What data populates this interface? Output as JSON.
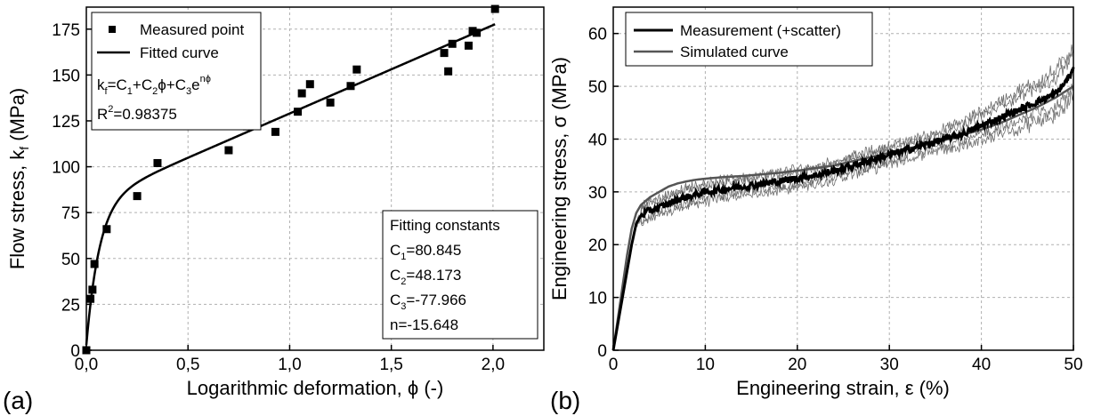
{
  "chart_data": [
    {
      "panel_label": "(a)",
      "type": "scatter",
      "xlabel": "Logarithmic deformation, ϕ (-)",
      "ylabel_main": "Flow stress, k",
      "ylabel_sub": "f",
      "ylabel_end": " (MPa)",
      "xlim": [
        0,
        2.25
      ],
      "ylim": [
        0,
        187
      ],
      "x_ticks": [
        0,
        0.5,
        1.0,
        1.5,
        2.0
      ],
      "x_tick_labels": [
        "0,0",
        "0,5",
        "1,0",
        "1,5",
        "2,0"
      ],
      "y_ticks": [
        0,
        25,
        50,
        75,
        100,
        125,
        150,
        175
      ],
      "y_tick_labels": [
        "0",
        "25",
        "50",
        "75",
        "100",
        "125",
        "150",
        "175"
      ],
      "grid": true,
      "legend_position": "top-left",
      "series": [
        {
          "name": "Measured point",
          "kind": "markers",
          "marker": "square",
          "x": [
            0.0,
            0.02,
            0.03,
            0.04,
            0.1,
            0.25,
            0.35,
            0.7,
            0.79,
            0.93,
            1.04,
            1.06,
            1.1,
            1.2,
            1.3,
            1.33,
            1.76,
            1.78,
            1.8,
            1.88,
            1.9,
            1.92,
            2.01
          ],
          "y": [
            0,
            28,
            33,
            47,
            66,
            84,
            102,
            109,
            122,
            119,
            130,
            140,
            145,
            135,
            144,
            153,
            162,
            152,
            167,
            166,
            174,
            173,
            186
          ]
        },
        {
          "name": "Fitted curve",
          "kind": "line",
          "x_start": 0.0,
          "x_end": 2.01,
          "color": "#000000"
        }
      ],
      "equation_label": "k",
      "equation_parts": {
        "k_sub": "f",
        "eq1": "=C",
        "s1": "1",
        "eq2": "+C",
        "s2": "2",
        "phi": "ϕ",
        "eq3": "+C",
        "s3": "3",
        "e": "e",
        "exp": "nϕ"
      },
      "r2_main": "R",
      "r2_sup": "2",
      "r2_value": "=0.98375",
      "fit_constants_title": "Fitting constants",
      "fit_constants": [
        {
          "name": "C",
          "sub": "1",
          "value": "=80.845"
        },
        {
          "name": "C",
          "sub": "2",
          "value": "=48.173"
        },
        {
          "name": "C",
          "sub": "3",
          "value": "=-77.966"
        },
        {
          "name": "n",
          "sub": "",
          "value": "=-15.648"
        }
      ],
      "model": {
        "C1": 80.845,
        "C2": 48.173,
        "C3": -77.966,
        "n": -15.648
      }
    },
    {
      "panel_label": "(b)",
      "type": "line",
      "xlabel": "Engineering strain, ε (%)",
      "ylabel": "Engineering stress, σ (MPa)",
      "xlim": [
        0,
        50
      ],
      "ylim": [
        0,
        65
      ],
      "x_ticks": [
        0,
        10,
        20,
        30,
        40,
        50
      ],
      "x_tick_labels": [
        "0",
        "10",
        "20",
        "30",
        "40",
        "50"
      ],
      "y_ticks": [
        0,
        10,
        20,
        30,
        40,
        50,
        60
      ],
      "y_tick_labels": [
        "0",
        "10",
        "20",
        "30",
        "40",
        "50",
        "60"
      ],
      "grid": true,
      "legend_position": "top-left",
      "series": [
        {
          "name": "Measurement (+scatter)",
          "color": "#000000",
          "x": [
            0,
            0.5,
            1,
            1.5,
            2,
            2.5,
            3,
            4,
            5,
            6,
            7,
            8,
            9,
            10,
            12,
            14,
            16,
            18,
            20,
            22,
            24,
            26,
            28,
            30,
            32,
            34,
            36,
            38,
            40,
            42,
            44,
            46,
            48,
            49,
            50
          ],
          "y": [
            0,
            5,
            10,
            15,
            20,
            24,
            25.5,
            26.5,
            27,
            27.8,
            28.5,
            29,
            29.5,
            30,
            30.5,
            31,
            31.5,
            32,
            32.6,
            33.2,
            34,
            35,
            36,
            37,
            38,
            39,
            40,
            41,
            42.5,
            44,
            45.5,
            47,
            48.5,
            50.5,
            53
          ]
        },
        {
          "name": "Simulated curve",
          "color": "#555555",
          "x": [
            0,
            0.5,
            1,
            1.5,
            2,
            2.5,
            3,
            4,
            5,
            6,
            7,
            8,
            9,
            10,
            12,
            14,
            16,
            18,
            20,
            22,
            24,
            26,
            28,
            30,
            32,
            34,
            36,
            38,
            40,
            42,
            44,
            46,
            48,
            50
          ],
          "y": [
            0,
            6,
            12,
            18,
            23,
            26,
            27.5,
            29,
            30,
            31,
            31.6,
            32,
            32.3,
            32.5,
            32.8,
            33,
            33.3,
            33.6,
            34,
            34.5,
            35,
            35.8,
            36.6,
            37.4,
            38.2,
            39,
            39.8,
            40.8,
            41.8,
            43,
            44.5,
            46,
            47.8,
            50
          ]
        }
      ]
    }
  ]
}
